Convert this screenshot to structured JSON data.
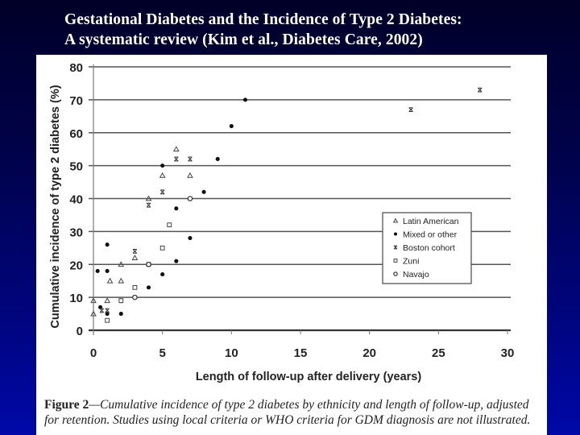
{
  "slide": {
    "title_line1": "Gestational Diabetes and the Incidence of Type 2 Diabetes:",
    "title_line2": "A systematic review (Kim et al., Diabetes Care, 2002)",
    "colors": {
      "bg_top": "#000028",
      "bg_bottom": "#0008a8",
      "title": "#ffffff"
    }
  },
  "caption": {
    "lead": "Figure 2",
    "text": "—Cumulative incidence of type 2 diabetes by ethnicity and length of follow-up, adjusted for retention. Studies using local criteria or WHO criteria for GDM diagnosis are not illustrated."
  },
  "chart_data": {
    "type": "scatter",
    "title": "",
    "xlabel": "Length of follow-up after delivery (years)",
    "ylabel": "Cumulative incidence of type 2 diabetes (%)",
    "xlim": [
      0,
      30
    ],
    "ylim": [
      0,
      80
    ],
    "xticks": [
      0,
      5,
      10,
      15,
      20,
      25,
      30
    ],
    "yticks": [
      0,
      10,
      20,
      30,
      40,
      50,
      60,
      70,
      80
    ],
    "grid": "horizontal",
    "legend_position": "right-middle",
    "series": [
      {
        "name": "Latin American",
        "marker": "triangle",
        "points": [
          [
            0,
            9
          ],
          [
            0,
            5
          ],
          [
            1,
            9
          ],
          [
            1.2,
            15
          ],
          [
            2,
            20
          ],
          [
            2,
            15
          ],
          [
            3,
            22
          ],
          [
            4,
            40
          ],
          [
            5,
            47
          ],
          [
            6,
            55
          ],
          [
            7,
            47
          ]
        ]
      },
      {
        "name": "Mixed or other",
        "marker": "filled-circle",
        "points": [
          [
            0.3,
            18
          ],
          [
            0.5,
            7
          ],
          [
            1,
            26
          ],
          [
            1,
            18
          ],
          [
            1,
            5
          ],
          [
            1,
            3
          ],
          [
            2,
            5
          ],
          [
            4,
            13
          ],
          [
            5,
            17
          ],
          [
            5,
            50
          ],
          [
            6,
            37
          ],
          [
            6,
            21
          ],
          [
            7,
            28
          ],
          [
            8,
            42
          ],
          [
            9,
            52
          ],
          [
            10,
            62
          ],
          [
            11,
            70
          ]
        ]
      },
      {
        "name": "Boston cohort",
        "marker": "x",
        "points": [
          [
            0.6,
            6
          ],
          [
            1,
            6
          ],
          [
            2,
            9
          ],
          [
            3,
            24
          ],
          [
            4,
            38
          ],
          [
            5,
            42
          ],
          [
            6,
            52
          ],
          [
            7,
            52
          ],
          [
            23,
            67
          ],
          [
            28,
            73
          ]
        ]
      },
      {
        "name": "Zuni",
        "marker": "square",
        "points": [
          [
            1,
            3
          ],
          [
            2,
            9
          ],
          [
            3,
            13
          ],
          [
            4,
            20
          ],
          [
            5,
            25
          ],
          [
            5.5,
            32
          ]
        ]
      },
      {
        "name": "Navajo",
        "marker": "open-circle",
        "points": [
          [
            3,
            10
          ],
          [
            4,
            20
          ],
          [
            7,
            40
          ]
        ]
      }
    ]
  }
}
